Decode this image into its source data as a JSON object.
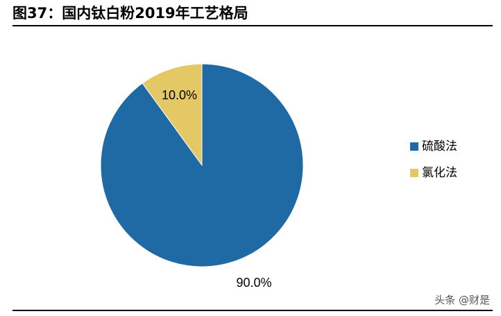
{
  "header": {
    "title": "图37：国内钛白粉2019年工艺格局"
  },
  "watermark": "头条 @财是",
  "colors": {
    "sulfate": "#1F69A5",
    "chloride": "#E3C865"
  },
  "chart_data": {
    "type": "pie",
    "title": "",
    "slices": [
      {
        "label": "硫酸法",
        "value": 90.0,
        "display": "90.0%",
        "color": "#1F69A5"
      },
      {
        "label": "氯化法",
        "value": 10.0,
        "display": "10.0%",
        "color": "#E3C865"
      }
    ],
    "legend_position": "right"
  }
}
